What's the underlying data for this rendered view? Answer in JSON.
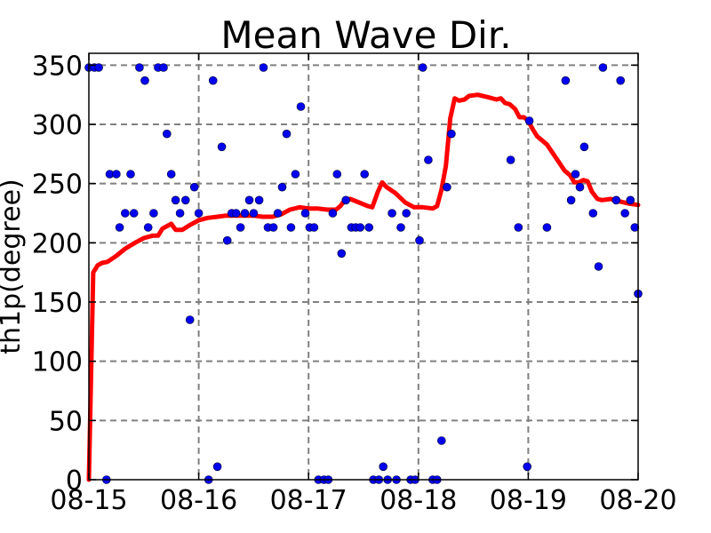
{
  "chart_data": {
    "type": "scatter",
    "title": "Mean Wave Dir.",
    "ylabel": "th1p(degree)",
    "xlabel": "",
    "xlim": [
      "08-15",
      "08-20"
    ],
    "ylim": [
      0,
      360
    ],
    "grid": true,
    "x_ticks": [
      "08-15",
      "08-16",
      "08-17",
      "08-18",
      "08-19",
      "08-20"
    ],
    "y_ticks": [
      0,
      50,
      100,
      150,
      200,
      250,
      300,
      350
    ],
    "colors": {
      "observed": "#0000ee",
      "model": "#ff0000",
      "grid": "#808080"
    },
    "series": [
      {
        "style": "points",
        "points": [
          [
            0.0,
            348
          ],
          [
            0.05,
            348
          ],
          [
            0.09,
            348
          ],
          [
            0.16,
            0
          ],
          [
            0.19,
            258
          ],
          [
            0.25,
            258
          ],
          [
            0.28,
            213
          ],
          [
            0.33,
            225
          ],
          [
            0.38,
            258
          ],
          [
            0.41,
            225
          ],
          [
            0.46,
            348
          ],
          [
            0.51,
            337
          ],
          [
            0.54,
            213
          ],
          [
            0.59,
            225
          ],
          [
            0.63,
            348
          ],
          [
            0.68,
            348
          ],
          [
            0.71,
            292
          ],
          [
            0.75,
            258
          ],
          [
            0.79,
            236
          ],
          [
            0.83,
            225
          ],
          [
            0.88,
            236
          ],
          [
            0.92,
            135
          ],
          [
            0.96,
            247
          ],
          [
            1.0,
            225
          ],
          [
            1.09,
            0
          ],
          [
            1.13,
            337
          ],
          [
            1.17,
            11
          ],
          [
            1.21,
            281
          ],
          [
            1.26,
            202
          ],
          [
            1.3,
            225
          ],
          [
            1.34,
            225
          ],
          [
            1.38,
            213
          ],
          [
            1.42,
            225
          ],
          [
            1.46,
            236
          ],
          [
            1.5,
            225
          ],
          [
            1.55,
            236
          ],
          [
            1.59,
            348
          ],
          [
            1.63,
            213
          ],
          [
            1.68,
            213
          ],
          [
            1.72,
            225
          ],
          [
            1.76,
            247
          ],
          [
            1.8,
            292
          ],
          [
            1.84,
            213
          ],
          [
            1.88,
            258
          ],
          [
            1.93,
            315
          ],
          [
            1.97,
            225
          ],
          [
            2.01,
            213
          ],
          [
            2.05,
            213
          ],
          [
            2.09,
            0
          ],
          [
            2.14,
            0
          ],
          [
            2.18,
            0
          ],
          [
            2.22,
            225
          ],
          [
            2.26,
            258
          ],
          [
            2.3,
            191
          ],
          [
            2.34,
            236
          ],
          [
            2.39,
            213
          ],
          [
            2.43,
            213
          ],
          [
            2.47,
            213
          ],
          [
            2.51,
            258
          ],
          [
            2.55,
            213
          ],
          [
            2.59,
            0
          ],
          [
            2.64,
            0
          ],
          [
            2.68,
            11
          ],
          [
            2.72,
            0
          ],
          [
            2.76,
            225
          ],
          [
            2.8,
            0
          ],
          [
            2.84,
            213
          ],
          [
            2.89,
            225
          ],
          [
            2.93,
            0
          ],
          [
            2.97,
            0
          ],
          [
            3.01,
            202
          ],
          [
            3.04,
            348
          ],
          [
            3.09,
            270
          ],
          [
            3.13,
            0
          ],
          [
            3.17,
            0
          ],
          [
            3.21,
            33
          ],
          [
            3.26,
            247
          ],
          [
            3.3,
            292
          ],
          [
            3.84,
            270
          ],
          [
            3.91,
            213
          ],
          [
            3.99,
            11
          ],
          [
            4.01,
            303
          ],
          [
            4.17,
            213
          ],
          [
            4.34,
            337
          ],
          [
            4.39,
            236
          ],
          [
            4.43,
            258
          ],
          [
            4.47,
            247
          ],
          [
            4.51,
            281
          ],
          [
            4.59,
            225
          ],
          [
            4.64,
            180
          ],
          [
            4.68,
            348
          ],
          [
            4.8,
            236
          ],
          [
            4.84,
            337
          ],
          [
            4.88,
            225
          ],
          [
            4.93,
            236
          ],
          [
            4.97,
            213
          ],
          [
            5.0,
            157
          ]
        ]
      },
      {
        "style": "line",
        "points": [
          [
            0.0,
            0
          ],
          [
            0.04,
            175
          ],
          [
            0.08,
            181
          ],
          [
            0.12,
            183
          ],
          [
            0.17,
            184
          ],
          [
            0.25,
            189
          ],
          [
            0.33,
            195
          ],
          [
            0.42,
            200
          ],
          [
            0.5,
            204
          ],
          [
            0.58,
            206
          ],
          [
            0.63,
            206
          ],
          [
            0.67,
            212
          ],
          [
            0.75,
            216
          ],
          [
            0.79,
            211
          ],
          [
            0.85,
            211
          ],
          [
            0.92,
            215
          ],
          [
            1.0,
            219
          ],
          [
            1.08,
            221
          ],
          [
            1.17,
            222
          ],
          [
            1.25,
            223
          ],
          [
            1.33,
            223
          ],
          [
            1.42,
            223
          ],
          [
            1.5,
            223
          ],
          [
            1.58,
            222
          ],
          [
            1.67,
            222
          ],
          [
            1.75,
            224
          ],
          [
            1.83,
            228
          ],
          [
            1.92,
            230
          ],
          [
            2.0,
            229
          ],
          [
            2.08,
            229
          ],
          [
            2.17,
            228
          ],
          [
            2.25,
            228
          ],
          [
            2.29,
            231
          ],
          [
            2.33,
            236
          ],
          [
            2.38,
            237
          ],
          [
            2.46,
            234
          ],
          [
            2.54,
            231
          ],
          [
            2.58,
            230
          ],
          [
            2.63,
            243
          ],
          [
            2.67,
            251
          ],
          [
            2.71,
            247
          ],
          [
            2.79,
            242
          ],
          [
            2.88,
            234
          ],
          [
            2.96,
            230
          ],
          [
            3.04,
            230
          ],
          [
            3.13,
            229
          ],
          [
            3.17,
            231
          ],
          [
            3.21,
            245
          ],
          [
            3.25,
            265
          ],
          [
            3.29,
            305
          ],
          [
            3.33,
            322
          ],
          [
            3.37,
            320
          ],
          [
            3.42,
            321
          ],
          [
            3.46,
            324
          ],
          [
            3.54,
            325
          ],
          [
            3.63,
            323
          ],
          [
            3.71,
            321
          ],
          [
            3.75,
            322
          ],
          [
            3.79,
            318
          ],
          [
            3.83,
            317
          ],
          [
            3.88,
            313
          ],
          [
            3.92,
            306
          ],
          [
            3.96,
            306
          ],
          [
            4.0,
            303
          ],
          [
            4.04,
            296
          ],
          [
            4.08,
            290
          ],
          [
            4.17,
            283
          ],
          [
            4.25,
            272
          ],
          [
            4.33,
            261
          ],
          [
            4.38,
            257
          ],
          [
            4.42,
            251
          ],
          [
            4.46,
            251
          ],
          [
            4.5,
            253
          ],
          [
            4.54,
            252
          ],
          [
            4.58,
            243
          ],
          [
            4.63,
            237
          ],
          [
            4.67,
            236
          ],
          [
            4.75,
            237
          ],
          [
            4.83,
            235
          ],
          [
            4.92,
            233
          ],
          [
            5.0,
            232
          ]
        ]
      }
    ]
  }
}
